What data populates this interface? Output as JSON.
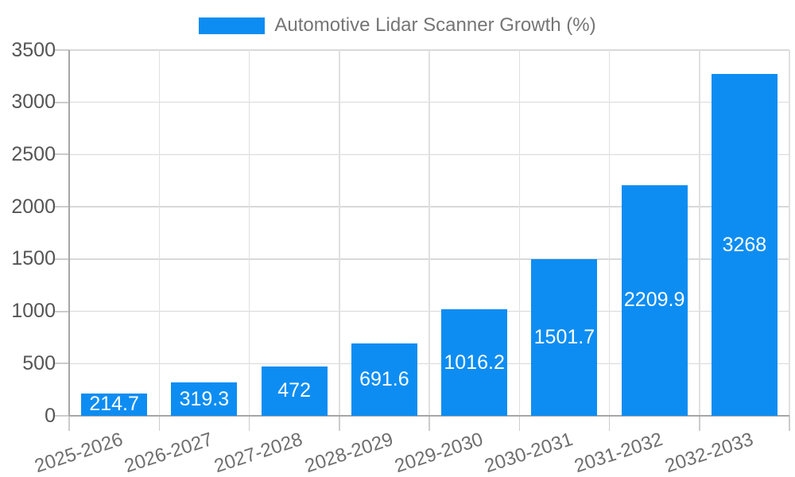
{
  "chart_data": {
    "type": "bar",
    "title": "Automotive Lidar Scanner Growth (%)",
    "legend": {
      "label": "Automotive Lidar Scanner Growth (%)",
      "position": "top-center"
    },
    "categories": [
      "2025-2026",
      "2026-2027",
      "2027-2028",
      "2028-2029",
      "2029-2030",
      "2030-2031",
      "2031-2032",
      "2032-2033"
    ],
    "series": [
      {
        "name": "Automotive Lidar Scanner Growth (%)",
        "values": [
          214.7,
          319.3,
          472,
          691.6,
          1016.2,
          1501.7,
          2209.9,
          3268
        ],
        "value_labels": [
          "214.7",
          "319.3",
          "472",
          "691.6",
          "1016.2",
          "1501.7",
          "2209.9",
          "3268"
        ]
      }
    ],
    "xlabel": "",
    "ylabel": "",
    "ylim": [
      0,
      3500
    ],
    "ytick_step": 500,
    "ytick_labels": [
      "0",
      "500",
      "1000",
      "1500",
      "2000",
      "2500",
      "3000",
      "3500"
    ],
    "grid": true,
    "annotations_inside_bars": true,
    "colors": {
      "bar": "#0d8df2",
      "annotation_text": "#ffffff",
      "legend_text": "#757575",
      "y_axis_text": "#555555",
      "x_axis_text": "#6e6e6e",
      "h_gridline": "#d9d9d9",
      "v_gridline": "#e0e0e0",
      "axis_line": "#a6a6a6",
      "tick": "#cccccc",
      "background": "#ffffff"
    }
  }
}
